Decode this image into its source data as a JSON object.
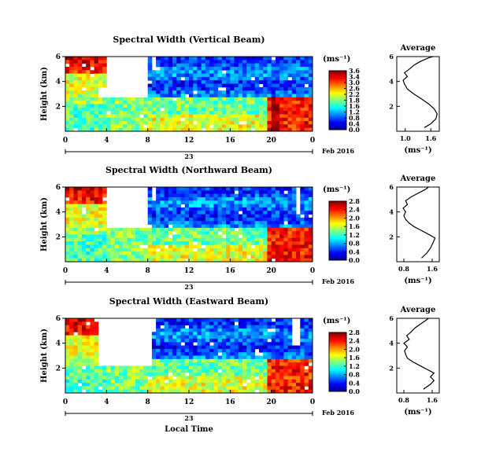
{
  "chart_data": [
    {
      "type": "heatmap",
      "title": "Spectral Width (Vertical Beam)",
      "ylabel": "Height (km)",
      "x_ticks": [
        "0",
        "4",
        "8",
        "12",
        "16",
        "20",
        "0"
      ],
      "y_ticks": [
        "6",
        "4",
        "2"
      ],
      "xlim": [
        0,
        24
      ],
      "ylim": [
        0,
        6
      ],
      "date_day": "23",
      "date_label": "Feb 2016",
      "colorbar": {
        "unit": "(ms⁻¹)",
        "ticks": [
          "3.6",
          "3.4",
          "3.0",
          "2.6",
          "2.2",
          "1.8",
          "1.6",
          "1.2",
          "0.8",
          "0.4",
          "0.0"
        ],
        "range": [
          0,
          3.6
        ]
      },
      "average": {
        "title": "Average",
        "xlabel": "(ms⁻¹)",
        "x_ticks": [
          "1.0",
          "1.6"
        ],
        "y_ticks": [
          "6",
          "4",
          "2"
        ],
        "xlim": [
          0.8,
          1.8
        ],
        "profile": [
          [
            1.45,
            0.3
          ],
          [
            1.6,
            0.6
          ],
          [
            1.72,
            1.0
          ],
          [
            1.75,
            1.4
          ],
          [
            1.68,
            1.8
          ],
          [
            1.55,
            2.2
          ],
          [
            1.38,
            2.6
          ],
          [
            1.2,
            3.0
          ],
          [
            1.05,
            3.4
          ],
          [
            0.98,
            3.8
          ],
          [
            0.95,
            4.1
          ],
          [
            1.05,
            4.4
          ],
          [
            0.98,
            4.7
          ],
          [
            1.1,
            5.0
          ],
          [
            1.2,
            5.3
          ],
          [
            1.35,
            5.6
          ],
          [
            1.55,
            5.9
          ],
          [
            1.65,
            6.0
          ]
        ]
      }
    },
    {
      "type": "heatmap",
      "title": "Spectral Width (Northward Beam)",
      "ylabel": "Height (km)",
      "x_ticks": [
        "0",
        "4",
        "8",
        "12",
        "16",
        "20",
        "0"
      ],
      "y_ticks": [
        "6",
        "4",
        "2"
      ],
      "xlim": [
        0,
        24
      ],
      "ylim": [
        0,
        6
      ],
      "date_day": "23",
      "date_label": "Feb 2016",
      "colorbar": {
        "unit": "(ms⁻¹)",
        "ticks": [
          "2.8",
          "2.4",
          "2.0",
          "1.6",
          "1.2",
          "0.8",
          "0.4",
          "0.0"
        ],
        "range": [
          0,
          2.8
        ]
      },
      "average": {
        "title": "Average",
        "xlabel": "(ms⁻¹)",
        "x_ticks": [
          "0.8",
          "1.6"
        ],
        "y_ticks": [
          "6",
          "4",
          "2"
        ],
        "xlim": [
          0.6,
          1.8
        ],
        "profile": [
          [
            1.3,
            0.3
          ],
          [
            1.45,
            0.7
          ],
          [
            1.55,
            1.1
          ],
          [
            1.62,
            1.5
          ],
          [
            1.68,
            1.9
          ],
          [
            1.5,
            2.2
          ],
          [
            1.3,
            2.5
          ],
          [
            1.1,
            2.8
          ],
          [
            0.95,
            3.1
          ],
          [
            0.85,
            3.4
          ],
          [
            0.8,
            3.7
          ],
          [
            0.85,
            4.0
          ],
          [
            0.78,
            4.3
          ],
          [
            0.9,
            4.6
          ],
          [
            0.85,
            4.9
          ],
          [
            1.0,
            5.2
          ],
          [
            1.2,
            5.5
          ],
          [
            1.4,
            5.8
          ],
          [
            1.5,
            6.0
          ]
        ]
      }
    },
    {
      "type": "heatmap",
      "title": "Spectral Width (Eastward Beam)",
      "ylabel": "Height (km)",
      "xlabel": "Local Time",
      "x_ticks": [
        "0",
        "4",
        "8",
        "12",
        "16",
        "20",
        "0"
      ],
      "y_ticks": [
        "6",
        "4",
        "2"
      ],
      "xlim": [
        0,
        24
      ],
      "ylim": [
        0,
        6
      ],
      "date_day": "23",
      "date_label": "Feb 2016",
      "colorbar": {
        "unit": "(ms⁻¹)",
        "ticks": [
          "2.8",
          "2.4",
          "2.0",
          "1.6",
          "1.2",
          "0.8",
          "0.4",
          "0.0"
        ],
        "range": [
          0,
          2.8
        ]
      },
      "average": {
        "title": "Average",
        "xlabel": "(ms⁻¹)",
        "x_ticks": [
          "0.8",
          "1.6"
        ],
        "y_ticks": [
          "6",
          "4",
          "2"
        ],
        "xlim": [
          0.6,
          1.8
        ],
        "profile": [
          [
            1.35,
            0.3
          ],
          [
            1.55,
            0.7
          ],
          [
            1.65,
            1.0
          ],
          [
            1.55,
            1.3
          ],
          [
            1.65,
            1.6
          ],
          [
            1.45,
            1.9
          ],
          [
            1.25,
            2.2
          ],
          [
            1.05,
            2.5
          ],
          [
            0.9,
            2.8
          ],
          [
            0.85,
            3.1
          ],
          [
            0.82,
            3.4
          ],
          [
            0.9,
            3.7
          ],
          [
            0.8,
            4.0
          ],
          [
            0.95,
            4.3
          ],
          [
            0.88,
            4.6
          ],
          [
            1.0,
            4.9
          ],
          [
            1.1,
            5.2
          ],
          [
            1.25,
            5.5
          ],
          [
            1.4,
            5.8
          ],
          [
            1.5,
            6.0
          ]
        ]
      }
    }
  ]
}
